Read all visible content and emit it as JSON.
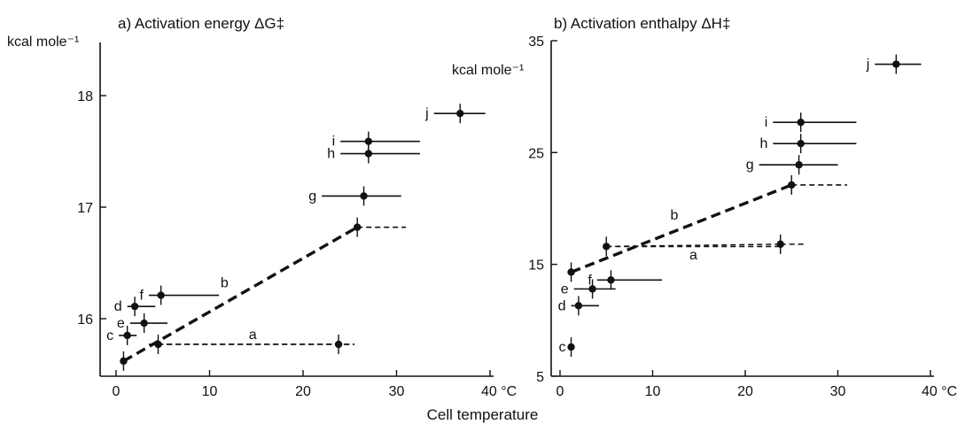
{
  "figure": {
    "x_axis_title": "Cell temperature"
  },
  "chart_data": [
    {
      "type": "scatter",
      "title": "a) Activation energy ΔG‡",
      "ylabel": "kcal mole⁻¹",
      "xlabel": "Cell temperature",
      "xlim": [
        -2,
        40
      ],
      "ylim": [
        15.55,
        18.5
      ],
      "x_ticks": [
        "0",
        "10",
        "20",
        "30",
        "40 °C"
      ],
      "y_ticks": [
        "16",
        "17",
        "18"
      ],
      "points": [
        {
          "label": "",
          "x": 0.8,
          "y": 15.62,
          "range": null,
          "dashed": false
        },
        {
          "label": "c",
          "x": 1.2,
          "y": 15.85,
          "range": [
            0.3,
            2.2
          ],
          "dashed": false
        },
        {
          "label": "e",
          "x": 3.0,
          "y": 15.96,
          "range": [
            1.5,
            5.5
          ],
          "dashed": false
        },
        {
          "label": "d",
          "x": 2.0,
          "y": 16.11,
          "range": [
            1.2,
            4.2
          ],
          "dashed": false
        },
        {
          "label": "f",
          "x": 4.8,
          "y": 16.21,
          "range": [
            3.5,
            11.0
          ],
          "dashed": false
        },
        {
          "label": "",
          "x": 4.5,
          "y": 15.77,
          "range": [
            3.5,
            25.5
          ],
          "dashed": true
        },
        {
          "label": "",
          "x": 23.8,
          "y": 15.77,
          "range": null,
          "dashed": false
        },
        {
          "label": "",
          "x": 25.8,
          "y": 16.82,
          "range": [
            25.8,
            31.0
          ],
          "dashed": true
        },
        {
          "label": "g",
          "x": 26.5,
          "y": 17.1,
          "range": [
            22.0,
            30.5
          ],
          "dashed": false
        },
        {
          "label": "h",
          "x": 27.0,
          "y": 17.48,
          "range": [
            24.0,
            32.5
          ],
          "dashed": false
        },
        {
          "label": "i",
          "x": 27.0,
          "y": 17.59,
          "range": [
            24.0,
            32.5
          ],
          "dashed": false
        },
        {
          "label": "j",
          "x": 36.8,
          "y": 17.84,
          "range": [
            34.0,
            39.5
          ],
          "dashed": false
        }
      ],
      "lines": [
        {
          "name": "a",
          "from": [
            4.5,
            15.77
          ],
          "to": [
            25.5,
            15.77
          ]
        },
        {
          "name": "b",
          "from": [
            0.8,
            15.62
          ],
          "to": [
            25.8,
            16.82
          ]
        }
      ]
    },
    {
      "type": "scatter",
      "title": "b) Activation enthalpy ΔH‡",
      "ylabel": "kcal mole⁻¹",
      "xlabel": "Cell temperature",
      "xlim": [
        -2,
        40
      ],
      "ylim": [
        5,
        35
      ],
      "x_ticks": [
        "0",
        "10",
        "20",
        "30",
        "40 °C"
      ],
      "y_ticks": [
        "5",
        "15",
        "25",
        "35"
      ],
      "points": [
        {
          "label": "c",
          "x": 1.2,
          "y": 7.6,
          "range": null,
          "dashed": false
        },
        {
          "label": "d",
          "x": 2.0,
          "y": 11.3,
          "range": [
            1.2,
            4.2
          ],
          "dashed": false
        },
        {
          "label": "e",
          "x": 3.5,
          "y": 12.8,
          "range": [
            1.5,
            6.0
          ],
          "dashed": false
        },
        {
          "label": "f",
          "x": 5.5,
          "y": 13.6,
          "range": [
            4.0,
            11.0
          ],
          "dashed": false
        },
        {
          "label": "",
          "x": 1.2,
          "y": 14.3,
          "range": null,
          "dashed": false
        },
        {
          "label": "",
          "x": 5.0,
          "y": 16.6,
          "range": [
            5.0,
            23.5
          ],
          "dashed": true
        },
        {
          "label": "",
          "x": 23.8,
          "y": 16.8,
          "range": [
            23.8,
            26.5
          ],
          "dashed": true
        },
        {
          "label": "",
          "x": 25.0,
          "y": 22.1,
          "range": [
            25.0,
            31.0
          ],
          "dashed": true
        },
        {
          "label": "g",
          "x": 25.8,
          "y": 23.9,
          "range": [
            21.5,
            30.0
          ],
          "dashed": false
        },
        {
          "label": "h",
          "x": 26.0,
          "y": 25.8,
          "range": [
            23.0,
            32.0
          ],
          "dashed": false
        },
        {
          "label": "i",
          "x": 26.0,
          "y": 27.7,
          "range": [
            23.0,
            32.0
          ],
          "dashed": false
        },
        {
          "label": "j",
          "x": 36.3,
          "y": 32.9,
          "range": [
            34.0,
            39.0
          ],
          "dashed": false
        }
      ],
      "lines": [
        {
          "name": "a",
          "from": [
            5.0,
            16.6
          ],
          "to": [
            23.8,
            16.8
          ]
        },
        {
          "name": "b",
          "from": [
            1.2,
            14.3
          ],
          "to": [
            25.0,
            22.1
          ]
        }
      ]
    }
  ]
}
